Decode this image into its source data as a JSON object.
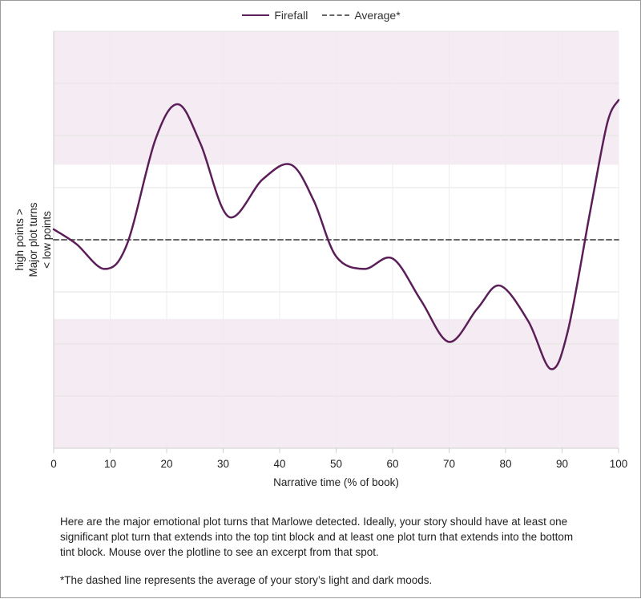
{
  "chart_data": {
    "type": "line",
    "xlabel": "Narrative time (% of book)",
    "ylabel": [
      "high points >",
      "Major plot turns",
      "< low points"
    ],
    "x_ticks": [
      0,
      10,
      20,
      30,
      40,
      50,
      60,
      70,
      80,
      90,
      100
    ],
    "xlim": [
      0,
      100
    ],
    "ylim": [
      -1,
      1
    ],
    "y_gridlines": [
      -1,
      -0.75,
      -0.5,
      -0.25,
      0,
      0.25,
      0.5,
      0.75,
      1
    ],
    "tint_bands": [
      [
        0.36,
        1
      ],
      [
        -1,
        -0.38
      ]
    ],
    "legend": {
      "position": "top-center",
      "entries": [
        "Firefall",
        "Average*"
      ]
    },
    "series": [
      {
        "name": "Firefall",
        "color": "#5b1e59",
        "style": "solid",
        "points": [
          [
            0,
            0.05
          ],
          [
            4,
            -0.02
          ],
          [
            9,
            -0.14
          ],
          [
            13,
            -0.02
          ],
          [
            18,
            0.48
          ],
          [
            22,
            0.65
          ],
          [
            26,
            0.46
          ],
          [
            31,
            0.11
          ],
          [
            37,
            0.29
          ],
          [
            42,
            0.36
          ],
          [
            46,
            0.19
          ],
          [
            50,
            -0.08
          ],
          [
            55,
            -0.14
          ],
          [
            60,
            -0.09
          ],
          [
            65,
            -0.29
          ],
          [
            70,
            -0.49
          ],
          [
            75,
            -0.33
          ],
          [
            79,
            -0.22
          ],
          [
            84,
            -0.39
          ],
          [
            88,
            -0.62
          ],
          [
            91,
            -0.44
          ],
          [
            95,
            0.14
          ],
          [
            98,
            0.56
          ],
          [
            100,
            0.67
          ]
        ]
      },
      {
        "name": "Average*",
        "color": "#666666",
        "style": "dashed",
        "points": [
          [
            0,
            0.0
          ],
          [
            100,
            0.0
          ]
        ]
      }
    ]
  },
  "description": "Here are the major emotional plot turns that Marlowe detected. Ideally, your story should have at least one significant plot turn that extends into the top tint block and at least one plot turn that extends into the bottom tint block. Mouse over the plotline to see an excerpt from that spot.",
  "footnote": "*The dashed line represents the average of your story’s light and dark moods."
}
